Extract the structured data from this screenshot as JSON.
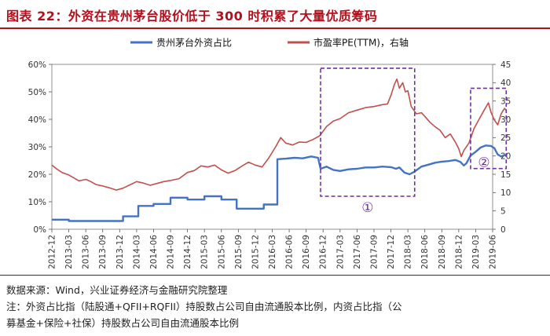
{
  "header": {
    "title": "图表 22：外资在贵州茅台股价低于 300 时积累了大量优质筹码"
  },
  "colors": {
    "title": "#b3101e",
    "series_foreign": "#4472c4",
    "series_pe": "#c0504d",
    "annotation": "#7030a0"
  },
  "chart_data": {
    "type": "line",
    "title": "图表 22：外资在贵州茅台股价低于 300 时积累了大量优质筹码",
    "legend_position": "top-center",
    "x_tick_labels": [
      "2012-12",
      "2013-03",
      "2013-06",
      "2013-09",
      "2013-12",
      "2014-03",
      "2014-06",
      "2014-09",
      "2014-12",
      "2015-03",
      "2015-06",
      "2015-09",
      "2015-12",
      "2016-03",
      "2016-06",
      "2016-09",
      "2016-12",
      "2017-03",
      "2017-06",
      "2017-09",
      "2017-12",
      "2018-03",
      "2018-06",
      "2018-09",
      "2018-12",
      "2019-03",
      "2019-06"
    ],
    "y_left": {
      "ticks": [
        "0%",
        "10%",
        "20%",
        "30%",
        "40%",
        "50%",
        "60%"
      ],
      "range": [
        0,
        60
      ]
    },
    "y_right": {
      "ticks": [
        "0",
        "5",
        "10",
        "15",
        "20",
        "25",
        "30",
        "35",
        "40",
        "45"
      ],
      "range": [
        0,
        45
      ]
    },
    "series": [
      {
        "name": "贵州茅台外资占比",
        "axis": "left",
        "color": "#4472c4",
        "points": [
          [
            0,
            3.5
          ],
          [
            1.0,
            3.5
          ],
          [
            1.0,
            3.0
          ],
          [
            4.2,
            3.0
          ],
          [
            4.2,
            4.7
          ],
          [
            5.1,
            4.7
          ],
          [
            5.1,
            8.5
          ],
          [
            6.0,
            8.5
          ],
          [
            6.0,
            9.2
          ],
          [
            7.0,
            9.2
          ],
          [
            7.0,
            11.5
          ],
          [
            8.0,
            11.5
          ],
          [
            8.0,
            10.8
          ],
          [
            9.0,
            10.8
          ],
          [
            9.0,
            12.0
          ],
          [
            10.0,
            12.0
          ],
          [
            10.0,
            10.8
          ],
          [
            10.9,
            10.8
          ],
          [
            10.9,
            7.5
          ],
          [
            12.5,
            7.5
          ],
          [
            12.5,
            9.0
          ],
          [
            13.3,
            9.0
          ],
          [
            13.3,
            25.5
          ],
          [
            13.8,
            25.7
          ],
          [
            14.3,
            26.0
          ],
          [
            14.8,
            25.8
          ],
          [
            15.3,
            26.5
          ],
          [
            15.7,
            26.0
          ],
          [
            15.85,
            22.0
          ],
          [
            16.2,
            22.8
          ],
          [
            16.6,
            21.6
          ],
          [
            17.0,
            21.2
          ],
          [
            17.5,
            21.8
          ],
          [
            18.0,
            22.0
          ],
          [
            18.5,
            22.5
          ],
          [
            19.0,
            22.5
          ],
          [
            19.5,
            22.8
          ],
          [
            20.0,
            22.6
          ],
          [
            20.3,
            22.0
          ],
          [
            20.5,
            22.5
          ],
          [
            20.8,
            20.6
          ],
          [
            21.1,
            20.0
          ],
          [
            21.4,
            21.0
          ],
          [
            21.8,
            22.8
          ],
          [
            22.2,
            23.5
          ],
          [
            22.6,
            24.2
          ],
          [
            23.0,
            24.6
          ],
          [
            23.4,
            24.8
          ],
          [
            23.8,
            25.2
          ],
          [
            24.1,
            24.5
          ],
          [
            24.3,
            23.2
          ],
          [
            24.45,
            24.0
          ],
          [
            24.7,
            26.8
          ],
          [
            25.0,
            28.2
          ],
          [
            25.3,
            29.8
          ],
          [
            25.6,
            30.5
          ],
          [
            25.9,
            30.3
          ],
          [
            26.1,
            29.5
          ],
          [
            26.3,
            27.2
          ],
          [
            26.5,
            26.5
          ],
          [
            26.7,
            27.0
          ],
          [
            26.8,
            26.8
          ]
        ]
      },
      {
        "name": "市盈率PE(TTM)，右轴",
        "axis": "right",
        "color": "#c0504d",
        "points": [
          [
            0,
            17.5
          ],
          [
            0.3,
            16.4
          ],
          [
            0.6,
            15.5
          ],
          [
            1.0,
            14.8
          ],
          [
            1.3,
            14.0
          ],
          [
            1.6,
            13.2
          ],
          [
            2.0,
            13.6
          ],
          [
            2.3,
            13.0
          ],
          [
            2.6,
            12.2
          ],
          [
            3.0,
            11.8
          ],
          [
            3.4,
            11.3
          ],
          [
            3.8,
            10.7
          ],
          [
            4.2,
            11.2
          ],
          [
            4.6,
            12.1
          ],
          [
            5.0,
            13.0
          ],
          [
            5.4,
            12.6
          ],
          [
            5.8,
            12.0
          ],
          [
            6.2,
            12.5
          ],
          [
            6.6,
            13.0
          ],
          [
            7.0,
            13.3
          ],
          [
            7.5,
            13.8
          ],
          [
            8.0,
            15.5
          ],
          [
            8.4,
            16.0
          ],
          [
            8.8,
            17.3
          ],
          [
            9.2,
            17.0
          ],
          [
            9.6,
            17.5
          ],
          [
            10.0,
            16.2
          ],
          [
            10.4,
            15.3
          ],
          [
            10.8,
            16.0
          ],
          [
            11.2,
            17.2
          ],
          [
            11.6,
            18.3
          ],
          [
            12.0,
            17.5
          ],
          [
            12.4,
            17.0
          ],
          [
            12.8,
            19.5
          ],
          [
            13.2,
            22.5
          ],
          [
            13.5,
            25.0
          ],
          [
            13.8,
            23.5
          ],
          [
            14.2,
            23.0
          ],
          [
            14.6,
            23.8
          ],
          [
            15.0,
            23.7
          ],
          [
            15.4,
            24.5
          ],
          [
            15.8,
            25.5
          ],
          [
            16.2,
            28.0
          ],
          [
            16.6,
            29.5
          ],
          [
            17.0,
            30.2
          ],
          [
            17.5,
            31.8
          ],
          [
            18.0,
            32.5
          ],
          [
            18.5,
            33.2
          ],
          [
            19.0,
            33.5
          ],
          [
            19.5,
            34.0
          ],
          [
            19.8,
            34.2
          ],
          [
            20.0,
            36.5
          ],
          [
            20.2,
            39.5
          ],
          [
            20.35,
            41.0
          ],
          [
            20.5,
            38.5
          ],
          [
            20.7,
            40.0
          ],
          [
            20.85,
            37.5
          ],
          [
            21.0,
            37.8
          ],
          [
            21.2,
            33.5
          ],
          [
            21.5,
            31.5
          ],
          [
            21.8,
            31.8
          ],
          [
            22.0,
            30.8
          ],
          [
            22.3,
            29.2
          ],
          [
            22.6,
            28.0
          ],
          [
            22.9,
            27.0
          ],
          [
            23.2,
            25.0
          ],
          [
            23.5,
            26.0
          ],
          [
            23.8,
            23.8
          ],
          [
            24.0,
            22.0
          ],
          [
            24.15,
            19.8
          ],
          [
            24.3,
            21.5
          ],
          [
            24.6,
            23.5
          ],
          [
            24.9,
            27.5
          ],
          [
            25.2,
            30.0
          ],
          [
            25.5,
            32.5
          ],
          [
            25.75,
            34.5
          ],
          [
            25.9,
            32.0
          ],
          [
            26.1,
            29.8
          ],
          [
            26.3,
            28.5
          ],
          [
            26.5,
            31.5
          ],
          [
            26.7,
            33.0
          ],
          [
            26.8,
            32.5
          ]
        ]
      }
    ],
    "annotations": [
      {
        "label": "①",
        "x_range": [
          15.85,
          21.4
        ],
        "y_range_left": [
          12.0,
          58.6
        ]
      },
      {
        "label": "②",
        "x_range": [
          24.7,
          26.8
        ],
        "y_range_left": [
          22.1,
          51.3
        ]
      }
    ]
  },
  "footer": {
    "source": "数据来源：Wind，兴业证券经济与金融研究院整理",
    "note_line1": "注：外资占比指（陆股通+QFII+RQFII）持股数占公司自由流通股本比例，内资占比指（公",
    "note_line2": "募基金+保险+社保）持股数占公司自由流通股本比例"
  }
}
